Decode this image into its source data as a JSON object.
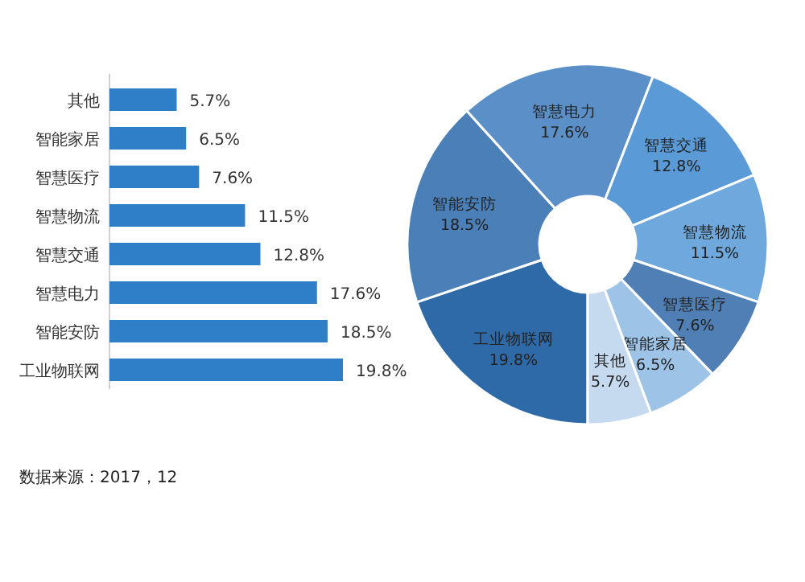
{
  "chart_data": [
    {
      "type": "bar",
      "orientation": "horizontal",
      "categories": [
        "其他",
        "智能家居",
        "智慧医疗",
        "智慧物流",
        "智慧交通",
        "智慧电力",
        "智能安防",
        "工业物联网"
      ],
      "values": [
        5.7,
        6.5,
        7.6,
        11.5,
        12.8,
        17.6,
        18.5,
        19.8
      ],
      "value_labels": [
        "5.7%",
        "6.5%",
        "7.6%",
        "11.5%",
        "12.8%",
        "17.6%",
        "18.5%",
        "19.8%"
      ],
      "color": "#2f7fc8",
      "annotations": [
        "数据来源：2017，12"
      ]
    },
    {
      "type": "donut",
      "categories": [
        "工业物联网",
        "智能安防",
        "智慧电力",
        "智慧交通",
        "智慧物流",
        "智慧医疗",
        "智能家居",
        "其他"
      ],
      "values": [
        19.8,
        18.5,
        17.6,
        12.8,
        11.5,
        7.6,
        6.5,
        5.7
      ],
      "value_labels": [
        "19.8%",
        "18.5%",
        "17.6%",
        "12.8%",
        "11.5%",
        "7.6%",
        "6.5%",
        "5.7%"
      ],
      "colors": [
        "#2e6aa8",
        "#4a7fb8",
        "#5b8fc7",
        "#5a9ad6",
        "#6ea8dc",
        "#4f7fb5",
        "#9dc3e6",
        "#c5d9ef"
      ]
    }
  ]
}
